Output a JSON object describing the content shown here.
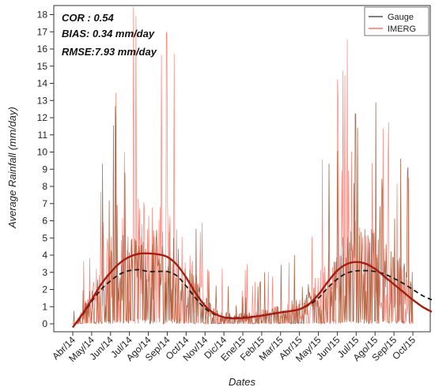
{
  "chart_data": {
    "type": "line",
    "title": "",
    "xlabel": "Dates",
    "ylabel": "Average Rainfall (mm/day)",
    "ylim": [
      0,
      18.5
    ],
    "y_ticks": [
      0,
      1,
      2,
      3,
      4,
      5,
      6,
      7,
      8,
      9,
      10,
      11,
      12,
      13,
      14,
      15,
      16,
      17,
      18
    ],
    "x_ticks": [
      "Abr/14",
      "May/14",
      "Jun/14",
      "Jul/14",
      "Ago/14",
      "Sep/14",
      "Oct/14",
      "Nov/14",
      "Dic/14",
      "Ene/15",
      "Feb/15",
      "Mar/15",
      "Abr/15",
      "May/15",
      "Jun/15",
      "Jul/15",
      "Ago/15",
      "Sep/15",
      "Oct/15"
    ],
    "grid": false,
    "legend_position": "top-right",
    "stats": {
      "cor": "COR : 0.54",
      "bias": "BIAS: 0.34 mm/day",
      "rmse": "RMSE:7.93 mm/day"
    },
    "series": [
      {
        "name": "Gauge",
        "color": "#a0522d",
        "smooth_color": "#1a1a1a",
        "smooth_style": "dashed",
        "smooth": [
          [
            0,
            -0.2
          ],
          [
            0.5,
            0.5
          ],
          [
            1,
            1.3
          ],
          [
            1.5,
            2.0
          ],
          [
            2,
            2.5
          ],
          [
            2.5,
            2.9
          ],
          [
            3,
            3.1
          ],
          [
            3.5,
            3.15
          ],
          [
            4,
            3.05
          ],
          [
            4.5,
            3.05
          ],
          [
            5,
            3.05
          ],
          [
            5.5,
            2.8
          ],
          [
            6,
            2.2
          ],
          [
            6.5,
            1.5
          ],
          [
            7,
            0.9
          ],
          [
            7.5,
            0.55
          ],
          [
            8,
            0.4
          ],
          [
            8.5,
            0.35
          ],
          [
            9,
            0.38
          ],
          [
            9.5,
            0.42
          ],
          [
            10,
            0.48
          ],
          [
            10.5,
            0.58
          ],
          [
            11,
            0.68
          ],
          [
            11.5,
            0.75
          ],
          [
            12,
            0.85
          ],
          [
            12.5,
            1.1
          ],
          [
            13,
            1.5
          ],
          [
            13.5,
            2.1
          ],
          [
            14,
            2.6
          ],
          [
            14.5,
            2.95
          ],
          [
            15,
            3.08
          ],
          [
            15.5,
            3.1
          ],
          [
            16,
            3.05
          ],
          [
            16.5,
            2.9
          ],
          [
            17,
            2.65
          ],
          [
            17.5,
            2.35
          ],
          [
            18,
            2.0
          ],
          [
            18.5,
            1.65
          ],
          [
            19,
            1.4
          ]
        ]
      },
      {
        "name": "IMERG",
        "color": "#ff5a4e",
        "smooth_color": "#a61c12",
        "smooth_style": "solid",
        "smooth": [
          [
            0,
            -0.2
          ],
          [
            0.5,
            0.55
          ],
          [
            1,
            1.4
          ],
          [
            1.5,
            2.3
          ],
          [
            2,
            3.0
          ],
          [
            2.5,
            3.55
          ],
          [
            3,
            3.9
          ],
          [
            3.5,
            4.08
          ],
          [
            4,
            4.1
          ],
          [
            4.5,
            4.05
          ],
          [
            5,
            3.9
          ],
          [
            5.5,
            3.45
          ],
          [
            6,
            2.7
          ],
          [
            6.5,
            1.8
          ],
          [
            7,
            1.05
          ],
          [
            7.5,
            0.6
          ],
          [
            8,
            0.38
          ],
          [
            8.5,
            0.32
          ],
          [
            9,
            0.34
          ],
          [
            9.5,
            0.4
          ],
          [
            10,
            0.48
          ],
          [
            10.5,
            0.57
          ],
          [
            11,
            0.66
          ],
          [
            11.5,
            0.74
          ],
          [
            12,
            0.85
          ],
          [
            12.5,
            1.15
          ],
          [
            13,
            1.7
          ],
          [
            13.5,
            2.45
          ],
          [
            14,
            3.1
          ],
          [
            14.5,
            3.48
          ],
          [
            15,
            3.6
          ],
          [
            15.5,
            3.5
          ],
          [
            16,
            3.2
          ],
          [
            16.5,
            2.75
          ],
          [
            17,
            2.3
          ],
          [
            17.5,
            1.85
          ],
          [
            18,
            1.4
          ],
          [
            18.5,
            1.0
          ],
          [
            19,
            0.7
          ]
        ]
      }
    ]
  }
}
